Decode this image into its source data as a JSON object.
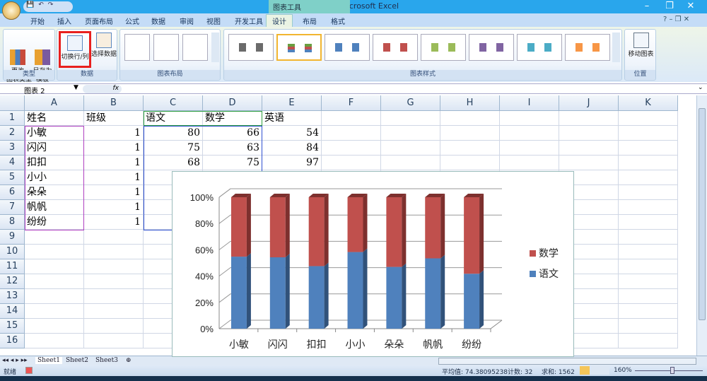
{
  "window": {
    "title": "Book1 - Microsoft Excel",
    "context_tab_group": "图表工具",
    "minimize": "–",
    "restore": "❐",
    "close": "✕"
  },
  "tabs": [
    "开始",
    "插入",
    "页面布局",
    "公式",
    "数据",
    "审阅",
    "视图",
    "开发工具",
    "设计",
    "布局",
    "格式"
  ],
  "active_tab": "设计",
  "ribbon": {
    "groups": {
      "type": "类型",
      "data": "数据",
      "layout": "图表布局",
      "styles": "图表样式",
      "location": "位置"
    },
    "change_type": "更改\n图表类型",
    "save_template": "另存为\n模板",
    "switch_row_col": "切换行/列",
    "select_data": "选择数据",
    "move_chart": "移动图表",
    "style_colors": [
      "#6b6b6b",
      "#4f81bd",
      "#4f81bd",
      "#c0504d",
      "#9bbb59",
      "#8064a2",
      "#4bacc6",
      "#f79646"
    ],
    "highlight_color": "#e8201e"
  },
  "formula_bar": {
    "name_box": "图表 2",
    "fx": "fx",
    "value": ""
  },
  "columns": [
    "A",
    "B",
    "C",
    "D",
    "E",
    "F",
    "G",
    "H",
    "I",
    "J",
    "K"
  ],
  "rows": [
    "1",
    "2",
    "3",
    "4",
    "5",
    "6",
    "7",
    "8",
    "9",
    "10",
    "11",
    "12",
    "13",
    "14",
    "15",
    "16"
  ],
  "cells": [
    [
      "姓名",
      "班级",
      "语文",
      "数学",
      "英语"
    ],
    [
      "小敏",
      "1",
      "80",
      "66",
      "54"
    ],
    [
      "闪闪",
      "1",
      "75",
      "63",
      "84"
    ],
    [
      "扣扣",
      "1",
      "68",
      "75",
      "97"
    ],
    [
      "小小",
      "1",
      "",
      "",
      ""
    ],
    [
      "朵朵",
      "1",
      "",
      "",
      ""
    ],
    [
      "帆帆",
      "1",
      "",
      "",
      ""
    ],
    [
      "纷纷",
      "1",
      "",
      "",
      ""
    ]
  ],
  "chart_data": {
    "type": "bar",
    "subtype": "3d-100%-stacked-column",
    "categories": [
      "小敏",
      "闪闪",
      "扣扣",
      "小小",
      "朵朵",
      "帆帆",
      "纷纷"
    ],
    "series": [
      {
        "name": "语文",
        "values": [
          54.8,
          54.3,
          47.6,
          58.3,
          47.0,
          53.5,
          41.8
        ],
        "color": "#4f81bd"
      },
      {
        "name": "数学",
        "values": [
          45.2,
          45.7,
          52.4,
          41.7,
          53.0,
          46.5,
          58.2
        ],
        "color": "#c0504d"
      }
    ],
    "yticks": [
      "0%",
      "20%",
      "40%",
      "60%",
      "80%",
      "100%"
    ],
    "ylim": [
      0,
      100
    ],
    "grid": true,
    "legend": "right"
  },
  "sheets": [
    "Sheet1",
    "Sheet2",
    "Sheet3"
  ],
  "status": {
    "ready": "就绪",
    "average": "平均值: 74.38095238",
    "count": "计数: 32",
    "sum": "求和: 1562",
    "zoom": "160%"
  }
}
